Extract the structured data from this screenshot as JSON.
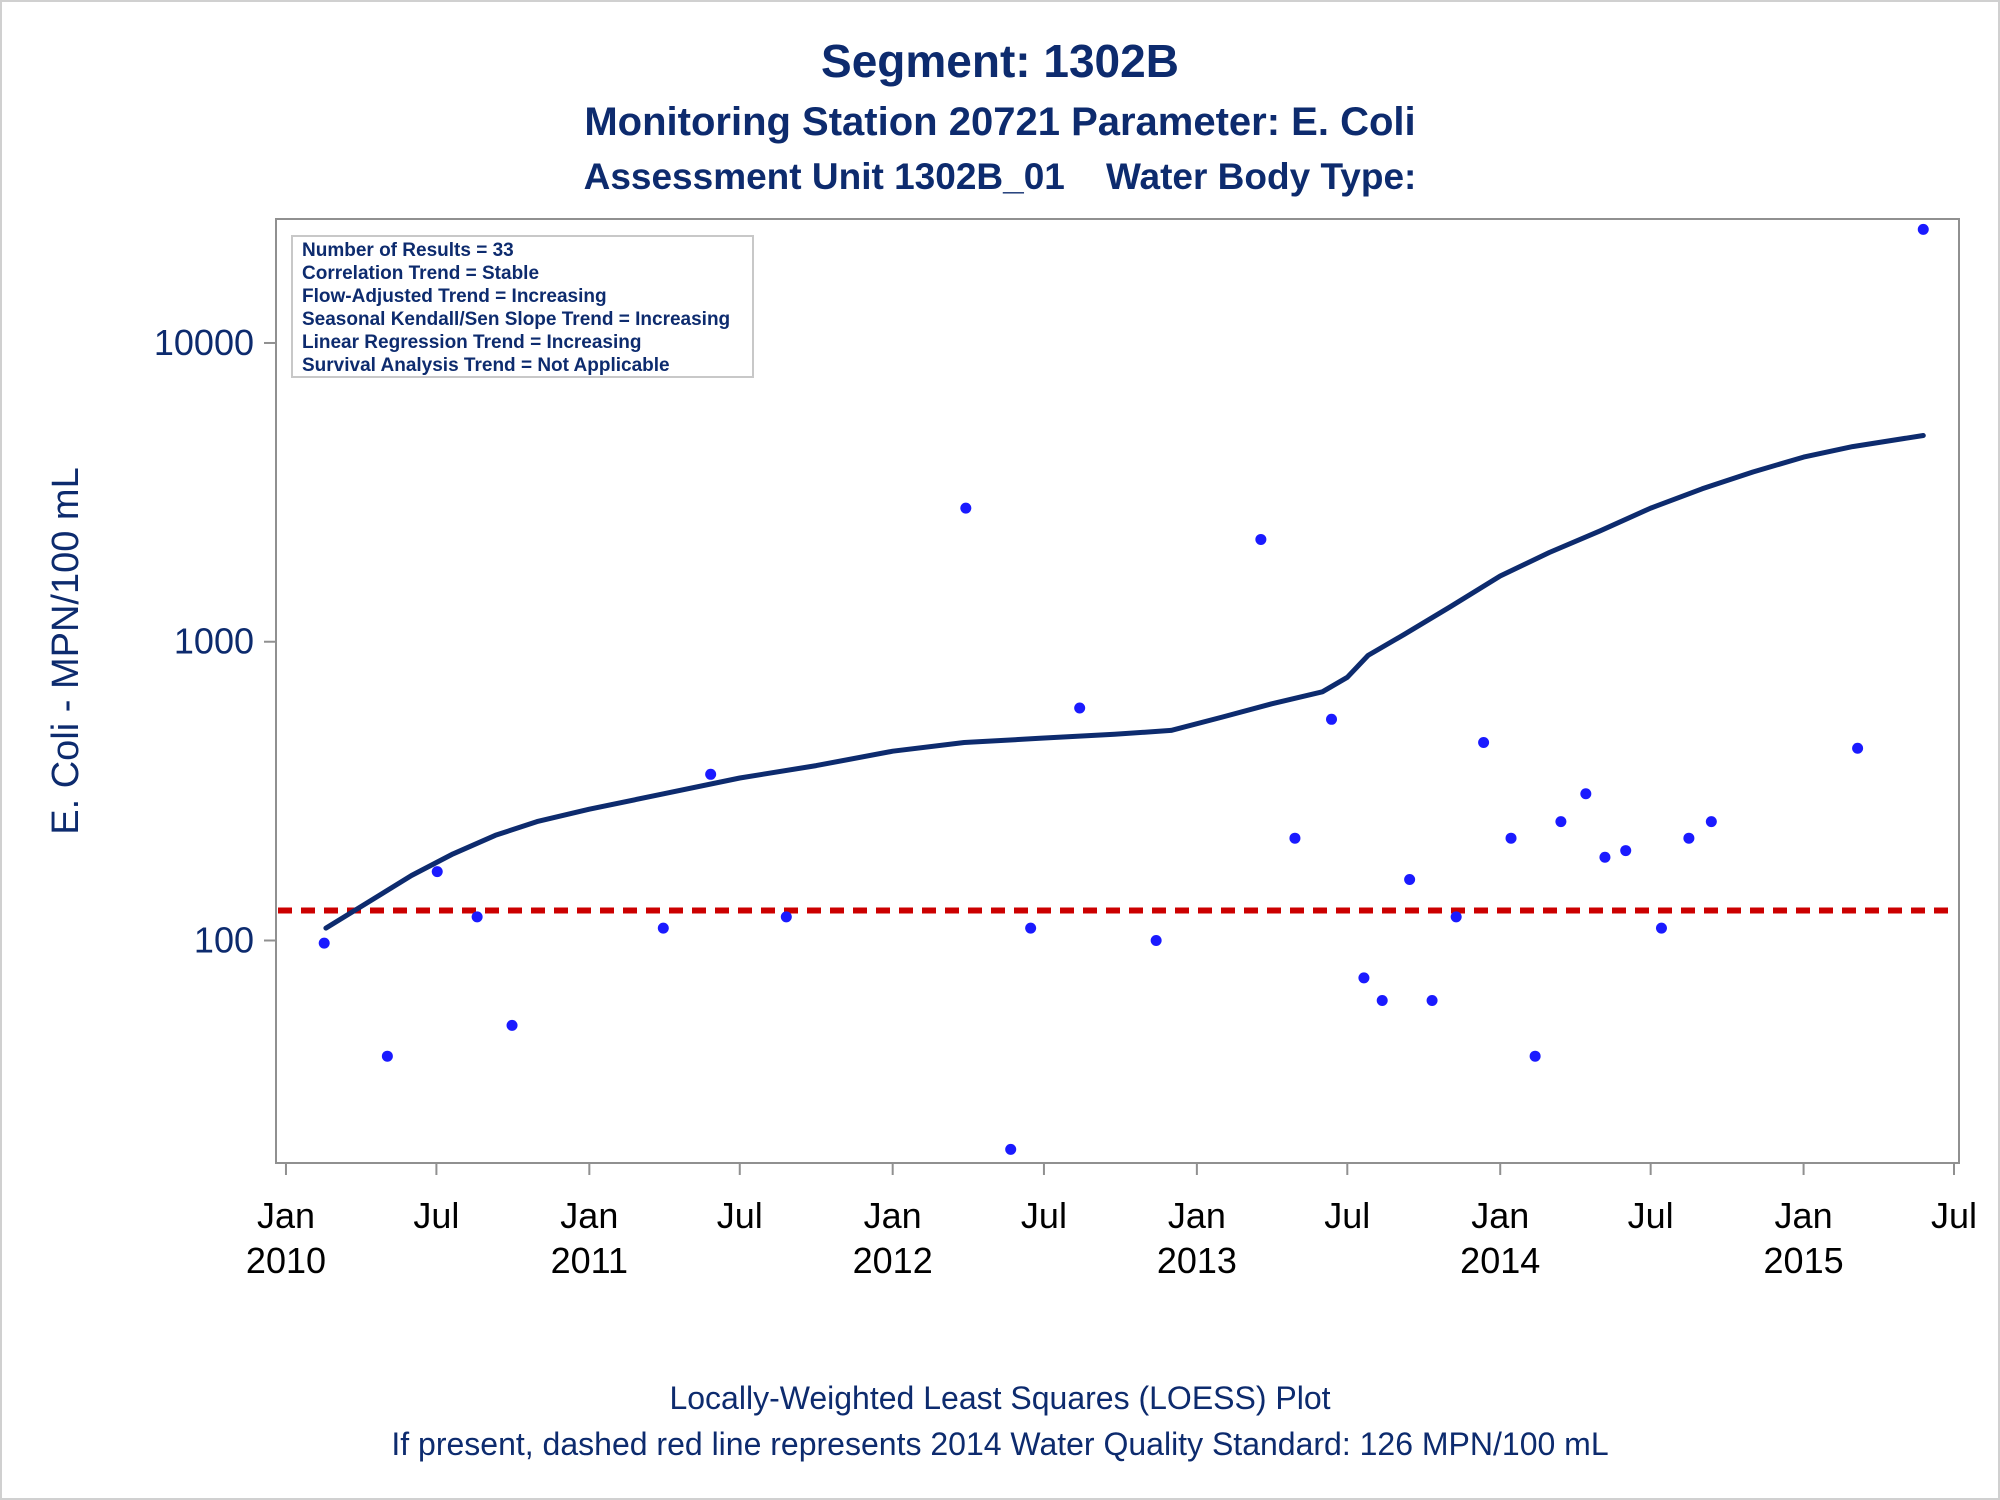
{
  "titles": {
    "line1": "Segment: 1302B",
    "line2": "Monitoring Station 20721 Parameter: E. Coli",
    "line3": "Assessment Unit 1302B_01    Water Body Type:"
  },
  "stats_box": [
    "Number of Results = 33",
    "Correlation Trend = Stable",
    "Flow-Adjusted Trend = Increasing",
    "Seasonal Kendall/Sen Slope Trend = Increasing",
    "Linear Regression Trend = Increasing",
    "Survival Analysis Trend = Not Applicable"
  ],
  "footer": {
    "line1": "Locally-Weighted Least Squares (LOESS) Plot",
    "line2": "If present, dashed red line represents 2014 Water Quality Standard: 126 MPN/100 mL"
  },
  "chart_data": {
    "type": "scatter",
    "ylabel": "E. Coli - MPN/100 mL",
    "y_scale": "log",
    "ylim": [
      18,
      26000
    ],
    "y_ticks": [
      {
        "value": 100,
        "label": "100"
      },
      {
        "value": 1000,
        "label": "1000"
      },
      {
        "value": 10000,
        "label": "10000"
      }
    ],
    "xlim": [
      "2009-12-20",
      "2015-07-07"
    ],
    "x_ticks": [
      {
        "date": "2010-01-01",
        "label": "Jan",
        "year": "2010"
      },
      {
        "date": "2010-07-01",
        "label": "Jul",
        "year": ""
      },
      {
        "date": "2011-01-01",
        "label": "Jan",
        "year": "2011"
      },
      {
        "date": "2011-07-01",
        "label": "Jul",
        "year": ""
      },
      {
        "date": "2012-01-01",
        "label": "Jan",
        "year": "2012"
      },
      {
        "date": "2012-07-01",
        "label": "Jul",
        "year": ""
      },
      {
        "date": "2013-01-01",
        "label": "Jan",
        "year": "2013"
      },
      {
        "date": "2013-07-01",
        "label": "Jul",
        "year": ""
      },
      {
        "date": "2014-01-01",
        "label": "Jan",
        "year": "2014"
      },
      {
        "date": "2014-07-01",
        "label": "Jul",
        "year": ""
      },
      {
        "date": "2015-01-01",
        "label": "Jan",
        "year": "2015"
      },
      {
        "date": "2015-07-01",
        "label": "Jul",
        "year": ""
      }
    ],
    "points": [
      {
        "date": "2010-02-16",
        "value": 98
      },
      {
        "date": "2010-05-03",
        "value": 41
      },
      {
        "date": "2010-07-02",
        "value": 170
      },
      {
        "date": "2010-08-19",
        "value": 120
      },
      {
        "date": "2010-09-30",
        "value": 52
      },
      {
        "date": "2011-03-31",
        "value": 110
      },
      {
        "date": "2011-05-27",
        "value": 360
      },
      {
        "date": "2011-08-26",
        "value": 120
      },
      {
        "date": "2012-03-29",
        "value": 2800
      },
      {
        "date": "2012-05-22",
        "value": 20
      },
      {
        "date": "2012-06-15",
        "value": 110
      },
      {
        "date": "2012-08-13",
        "value": 600
      },
      {
        "date": "2012-11-13",
        "value": 100
      },
      {
        "date": "2013-03-19",
        "value": 2200
      },
      {
        "date": "2013-04-29",
        "value": 220
      },
      {
        "date": "2013-06-12",
        "value": 550
      },
      {
        "date": "2013-07-21",
        "value": 75
      },
      {
        "date": "2013-08-12",
        "value": 63
      },
      {
        "date": "2013-09-14",
        "value": 160
      },
      {
        "date": "2013-10-11",
        "value": 63
      },
      {
        "date": "2013-11-09",
        "value": 120
      },
      {
        "date": "2013-12-12",
        "value": 460
      },
      {
        "date": "2014-01-14",
        "value": 220
      },
      {
        "date": "2014-02-12",
        "value": 41
      },
      {
        "date": "2014-03-15",
        "value": 250
      },
      {
        "date": "2014-04-14",
        "value": 310
      },
      {
        "date": "2014-05-07",
        "value": 190
      },
      {
        "date": "2014-06-01",
        "value": 200
      },
      {
        "date": "2014-07-14",
        "value": 110
      },
      {
        "date": "2014-08-16",
        "value": 220
      },
      {
        "date": "2014-09-12",
        "value": 250
      },
      {
        "date": "2015-03-07",
        "value": 440
      },
      {
        "date": "2015-05-25",
        "value": 24000
      }
    ],
    "loess": [
      {
        "date": "2010-02-18",
        "value": 110
      },
      {
        "date": "2010-04-11",
        "value": 135
      },
      {
        "date": "2010-06-01",
        "value": 165
      },
      {
        "date": "2010-07-21",
        "value": 195
      },
      {
        "date": "2010-09-10",
        "value": 225
      },
      {
        "date": "2010-10-30",
        "value": 250
      },
      {
        "date": "2011-01-01",
        "value": 275
      },
      {
        "date": "2011-04-01",
        "value": 310
      },
      {
        "date": "2011-07-01",
        "value": 350
      },
      {
        "date": "2011-10-01",
        "value": 385
      },
      {
        "date": "2012-01-01",
        "value": 430
      },
      {
        "date": "2012-03-27",
        "value": 460
      },
      {
        "date": "2012-06-26",
        "value": 475
      },
      {
        "date": "2012-09-24",
        "value": 490
      },
      {
        "date": "2012-12-01",
        "value": 505
      },
      {
        "date": "2013-02-01",
        "value": 560
      },
      {
        "date": "2013-04-01",
        "value": 620
      },
      {
        "date": "2013-06-01",
        "value": 680
      },
      {
        "date": "2013-07-01",
        "value": 760
      },
      {
        "date": "2013-07-26",
        "value": 900
      },
      {
        "date": "2013-09-08",
        "value": 1060
      },
      {
        "date": "2013-11-02",
        "value": 1310
      },
      {
        "date": "2014-01-01",
        "value": 1660
      },
      {
        "date": "2014-03-01",
        "value": 1990
      },
      {
        "date": "2014-05-01",
        "value": 2350
      },
      {
        "date": "2014-07-01",
        "value": 2800
      },
      {
        "date": "2014-09-01",
        "value": 3250
      },
      {
        "date": "2014-11-01",
        "value": 3700
      },
      {
        "date": "2015-01-01",
        "value": 4150
      },
      {
        "date": "2015-03-01",
        "value": 4500
      },
      {
        "date": "2015-05-25",
        "value": 4900
      }
    ],
    "standard_value": 126,
    "colors": {
      "points": "#1a1aff",
      "loess": "#0d2b6e",
      "standard": "#cc0000",
      "axis": "#909090",
      "text": "#0d2b6e"
    }
  }
}
